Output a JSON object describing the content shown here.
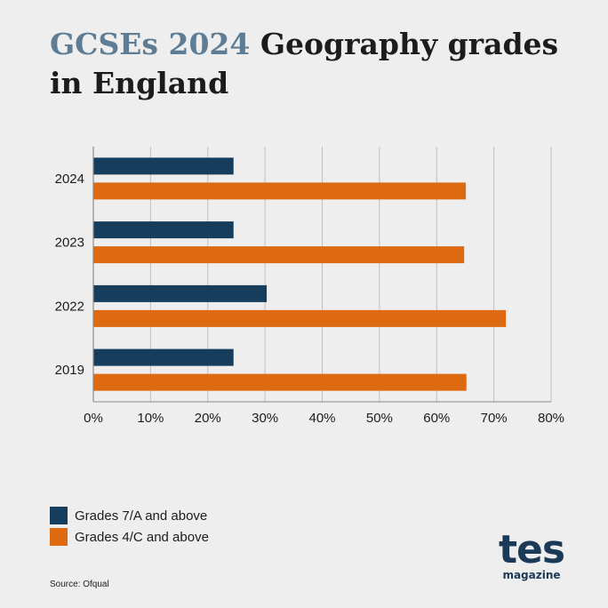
{
  "title": {
    "highlight": "GCSEs 2024",
    "rest": " Geography grades in England"
  },
  "colors": {
    "series1": "#173d5c",
    "series2": "#dd6a11",
    "grid": "#bfbfbf",
    "axis": "#8c8c8c",
    "text": "#1c1c1c",
    "title_highlight": "#5e7d94"
  },
  "chart_data": {
    "type": "bar",
    "orientation": "horizontal",
    "categories": [
      "2024",
      "2023",
      "2022",
      "2019"
    ],
    "series": [
      {
        "name": "Grades 7/A and above",
        "color": "#173d5c",
        "values": [
          24.5,
          24.5,
          30.3,
          24.5
        ]
      },
      {
        "name": "Grades 4/C and above",
        "color": "#dd6a11",
        "values": [
          65.1,
          64.8,
          72.1,
          65.2
        ]
      }
    ],
    "xlim": [
      0,
      80
    ],
    "xticks": [
      "0%",
      "10%",
      "20%",
      "30%",
      "40%",
      "50%",
      "60%",
      "70%",
      "80%"
    ],
    "grid": true,
    "legend_position": "bottom-left"
  },
  "legend": [
    {
      "label": "Grades 7/A and above",
      "color": "#173d5c"
    },
    {
      "label": "Grades 4/C and above",
      "color": "#dd6a11"
    }
  ],
  "source": "Source: Ofqual",
  "logo": {
    "main": "tes",
    "sub": "magazine"
  }
}
